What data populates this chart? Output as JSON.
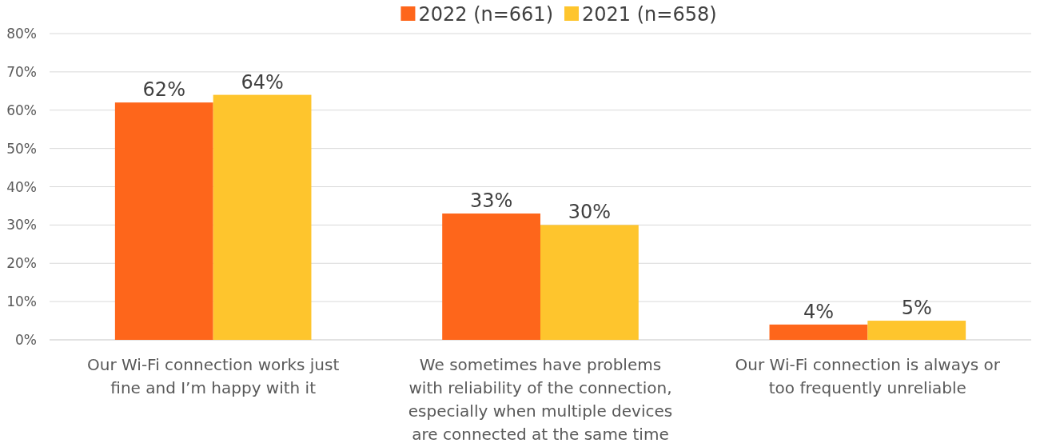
{
  "chart_data": {
    "type": "bar",
    "categories": [
      "Our Wi-Fi connection works just fine and I’m happy with it",
      "We sometimes have problems with reliability of the connection, especially when multiple devices are connected at the same time",
      "Our Wi-Fi connection is always or too frequently unreliable"
    ],
    "series": [
      {
        "name": "2022 (n=661)",
        "color": "#fe661b",
        "values": [
          62,
          33,
          4
        ],
        "value_labels": [
          "62%",
          "33%",
          "4%"
        ]
      },
      {
        "name": "2021 (n=658)",
        "color": "#fec52d",
        "values": [
          64,
          30,
          5
        ],
        "value_labels": [
          "64%",
          "30%",
          "5%"
        ]
      }
    ],
    "ylim": [
      0,
      80
    ],
    "yticks": [
      {
        "value": 0,
        "label": "0%"
      },
      {
        "value": 10,
        "label": "10%"
      },
      {
        "value": 20,
        "label": "20%"
      },
      {
        "value": 30,
        "label": "30%"
      },
      {
        "value": 40,
        "label": "40%"
      },
      {
        "value": 50,
        "label": "50%"
      },
      {
        "value": 60,
        "label": "60%"
      },
      {
        "value": 70,
        "label": "70%"
      },
      {
        "value": 80,
        "label": "80%"
      }
    ],
    "grid": "y",
    "legend": "top"
  }
}
